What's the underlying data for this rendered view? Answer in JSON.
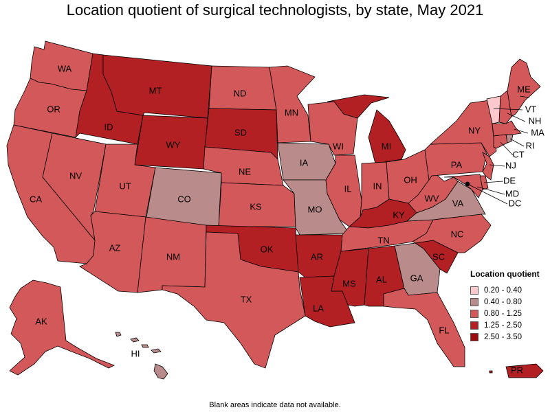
{
  "title": "Location quotient of surgical technologists, by state, May 2021",
  "footnote": "Blank areas indicate data not available.",
  "colors": {
    "bin1": "#fcc8cc",
    "bin2": "#b98b8b",
    "bin3": "#d2585a",
    "bin4": "#b22024",
    "bin5": "#9e0d0d"
  },
  "legend": {
    "title": "Location quotient",
    "items": [
      {
        "label": "0.20 - 0.40",
        "color": "#fcc8cc"
      },
      {
        "label": "0.40 - 0.80",
        "color": "#b98b8b"
      },
      {
        "label": "0.80 - 1.25",
        "color": "#d2585a"
      },
      {
        "label": "1.25 - 2.50",
        "color": "#b22024"
      },
      {
        "label": "2.50 - 3.50",
        "color": "#9e0d0d"
      }
    ]
  },
  "states": [
    {
      "abbr": "WA",
      "bin": 3
    },
    {
      "abbr": "OR",
      "bin": 3
    },
    {
      "abbr": "CA",
      "bin": 3
    },
    {
      "abbr": "ID",
      "bin": 4
    },
    {
      "abbr": "NV",
      "bin": 3
    },
    {
      "abbr": "MT",
      "bin": 4
    },
    {
      "abbr": "WY",
      "bin": 4
    },
    {
      "abbr": "UT",
      "bin": 3
    },
    {
      "abbr": "AZ",
      "bin": 3
    },
    {
      "abbr": "CO",
      "bin": 2
    },
    {
      "abbr": "NM",
      "bin": 3
    },
    {
      "abbr": "ND",
      "bin": 3
    },
    {
      "abbr": "SD",
      "bin": 4
    },
    {
      "abbr": "NE",
      "bin": 3
    },
    {
      "abbr": "KS",
      "bin": 3
    },
    {
      "abbr": "OK",
      "bin": 4
    },
    {
      "abbr": "TX",
      "bin": 3
    },
    {
      "abbr": "MN",
      "bin": 3
    },
    {
      "abbr": "IA",
      "bin": 2
    },
    {
      "abbr": "MO",
      "bin": 2
    },
    {
      "abbr": "AR",
      "bin": 4
    },
    {
      "abbr": "LA",
      "bin": 4
    },
    {
      "abbr": "WI",
      "bin": 3
    },
    {
      "abbr": "IL",
      "bin": 3
    },
    {
      "abbr": "MI",
      "bin": 4
    },
    {
      "abbr": "IN",
      "bin": 3
    },
    {
      "abbr": "OH",
      "bin": 3
    },
    {
      "abbr": "KY",
      "bin": 4
    },
    {
      "abbr": "TN",
      "bin": 3
    },
    {
      "abbr": "MS",
      "bin": 4
    },
    {
      "abbr": "AL",
      "bin": 4
    },
    {
      "abbr": "GA",
      "bin": 2
    },
    {
      "abbr": "FL",
      "bin": 3
    },
    {
      "abbr": "SC",
      "bin": 4
    },
    {
      "abbr": "NC",
      "bin": 3
    },
    {
      "abbr": "VA",
      "bin": 2
    },
    {
      "abbr": "WV",
      "bin": 3
    },
    {
      "abbr": "PA",
      "bin": 3
    },
    {
      "abbr": "NY",
      "bin": 3
    },
    {
      "abbr": "VT",
      "bin": 1
    },
    {
      "abbr": "NH",
      "bin": 3
    },
    {
      "abbr": "ME",
      "bin": 3
    },
    {
      "abbr": "MA",
      "bin": 3
    },
    {
      "abbr": "RI",
      "bin": 2
    },
    {
      "abbr": "CT",
      "bin": 3
    },
    {
      "abbr": "NJ",
      "bin": 3
    },
    {
      "abbr": "DE",
      "bin": 3
    },
    {
      "abbr": "MD",
      "bin": 3
    },
    {
      "abbr": "DC",
      "bin": 3
    },
    {
      "abbr": "AK",
      "bin": 3
    },
    {
      "abbr": "HI",
      "bin": 2
    },
    {
      "abbr": "PR",
      "bin": 4
    }
  ]
}
